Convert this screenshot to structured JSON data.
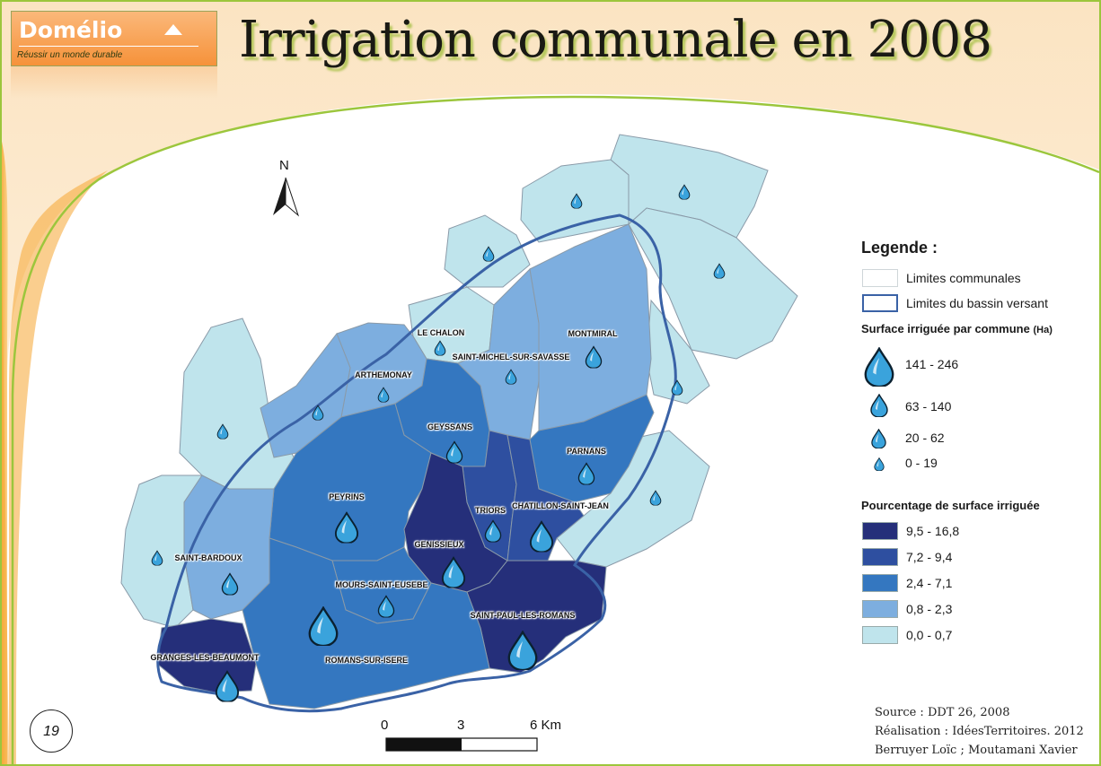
{
  "header": {
    "logo_name": "Domélio",
    "logo_tagline": "Réussir un monde durable",
    "title": "Irrigation communale en 2008"
  },
  "north_label": "N",
  "communes": [
    {
      "name": "LE CHALON",
      "pct_class": 3,
      "size_class": 0
    },
    {
      "name": "SAINT-MICHEL-SUR-SAVASSE",
      "pct_class": 3,
      "size_class": 0
    },
    {
      "name": "MONTMIRAL",
      "pct_class": 3,
      "size_class": 1
    },
    {
      "name": "ARTHEMONAY",
      "pct_class": 3,
      "size_class": 0
    },
    {
      "name": "GEYSSANS",
      "pct_class": 2,
      "size_class": 1
    },
    {
      "name": "PARNANS",
      "pct_class": 2,
      "size_class": 1
    },
    {
      "name": "PEYRINS",
      "pct_class": 2,
      "size_class": 2
    },
    {
      "name": "TRIORS",
      "pct_class": 1,
      "size_class": 1
    },
    {
      "name": "CHATILLON-SAINT-JEAN",
      "pct_class": 1,
      "size_class": 2
    },
    {
      "name": "GENISSIEUX",
      "pct_class": 0,
      "size_class": 2
    },
    {
      "name": "SAINT-BARDOUX",
      "pct_class": 3,
      "size_class": 1
    },
    {
      "name": "MOURS-SAINT-EUSEBE",
      "pct_class": 2,
      "size_class": 1
    },
    {
      "name": "SAINT-PAUL-LES-ROMANS",
      "pct_class": 0,
      "size_class": 3
    },
    {
      "name": "GRANGES-LES-BEAUMONT",
      "pct_class": 0,
      "size_class": 2
    },
    {
      "name": "ROMANS-SUR-ISERE",
      "pct_class": 2,
      "size_class": 3
    }
  ],
  "legend": {
    "title": "Legende :",
    "limits_communes": "Limites communales",
    "limits_bassin": "Limites du bassin versant",
    "surface_title": "Surface irriguée par commune",
    "surface_unit": "(Ha)",
    "surface_classes": [
      "141 - 246",
      "63 - 140",
      "20 - 62",
      "0 - 19"
    ],
    "pct_title": "Pourcentage de surface irriguée",
    "pct_classes": [
      {
        "label": "9,5 - 16,8",
        "color": "#252f7a"
      },
      {
        "label": "7,2 - 9,4",
        "color": "#2e4fa0"
      },
      {
        "label": "2,4 - 7,1",
        "color": "#3477c0"
      },
      {
        "label": "0,8 - 2,3",
        "color": "#7daedf"
      },
      {
        "label": "0,0 - 0,7",
        "color": "#bfe4ec"
      }
    ]
  },
  "scale_bar": {
    "labels": [
      "0",
      "3",
      "6 Km"
    ]
  },
  "source": {
    "line1": "Source : DDT 26, 2008",
    "line2": "Réalisation : IdéesTerritoires. 2012",
    "line3": "Berruyer Loïc ; Moutamani Xavier"
  },
  "page_number": "19",
  "colors": {
    "water_drop": "#3aa3dc",
    "outer_light": "#bfe4ec",
    "basin_line": "#3a62a6",
    "orange": "#f6a23a"
  }
}
